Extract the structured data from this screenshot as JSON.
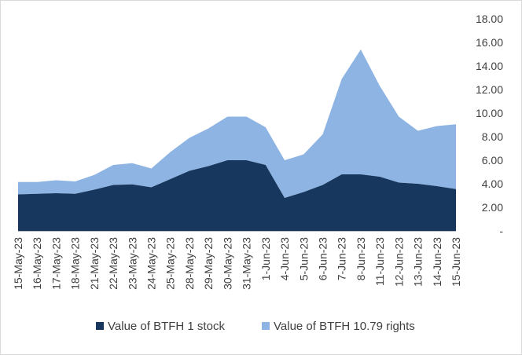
{
  "chart_data": {
    "type": "area",
    "stacked": true,
    "x": [
      "15-May-23",
      "16-May-23",
      "17-May-23",
      "18-May-23",
      "21-May-23",
      "22-May-23",
      "23-May-23",
      "24-May-23",
      "25-May-23",
      "28-May-23",
      "29-May-23",
      "30-May-23",
      "31-May-23",
      "1-Jun-23",
      "4-Jun-23",
      "5-Jun-23",
      "6-Jun-23",
      "7-Jun-23",
      "8-Jun-23",
      "11-Jun-23",
      "12-Jun-23",
      "13-Jun-23",
      "14-Jun-23",
      "15-Jun-23"
    ],
    "series": [
      {
        "name": "Value of BTFH 1 stock",
        "color": "#17375e",
        "values": [
          3.1,
          3.15,
          3.2,
          3.15,
          3.5,
          3.9,
          3.95,
          3.7,
          4.4,
          5.1,
          5.5,
          6.0,
          6.0,
          5.6,
          2.8,
          3.3,
          3.9,
          4.8,
          4.8,
          4.6,
          4.1,
          4.0,
          3.8,
          3.55
        ]
      },
      {
        "name": "Value of BTFH 10.79 rights",
        "color": "#8eb4e3",
        "values": [
          1.05,
          1.0,
          1.1,
          1.05,
          1.25,
          1.7,
          1.8,
          1.6,
          2.3,
          2.8,
          3.2,
          3.7,
          3.7,
          3.2,
          3.2,
          3.2,
          4.3,
          8.1,
          10.6,
          7.7,
          5.6,
          4.5,
          5.1,
          5.5
        ]
      }
    ],
    "ylim": [
      0,
      18
    ],
    "yticks": [
      "-",
      "2.00",
      "4.00",
      "6.00",
      "8.00",
      "10.00",
      "12.00",
      "14.00",
      "16.00",
      "18.00"
    ],
    "grid": false,
    "y_axis_side": "right",
    "legend_position": "bottom"
  }
}
